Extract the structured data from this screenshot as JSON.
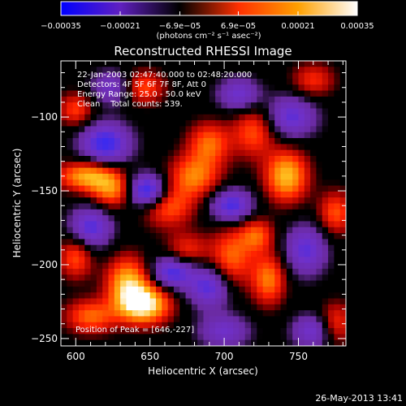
{
  "chart_data": {
    "type": "heatmap",
    "title": "Reconstructed RHESSI Image",
    "xlabel": "Heliocentric X (arcsec)",
    "ylabel": "Heliocentric Y (arcsec)",
    "xlim": [
      590,
      782
    ],
    "ylim": [
      -255,
      -62
    ],
    "x_ticks": [
      600,
      650,
      700,
      750
    ],
    "y_ticks": [
      -100,
      -150,
      -200,
      -250
    ],
    "x_tick_labels": [
      "600",
      "650",
      "700",
      "750"
    ],
    "y_tick_labels": [
      "−100",
      "−150",
      "−200",
      "−250"
    ],
    "colorbar": {
      "min": -0.00035,
      "max": 0.00035,
      "tick_values": [
        -0.00035,
        -0.00021,
        -6.9e-05,
        6.9e-05,
        0.00021,
        0.00035
      ],
      "tick_labels": [
        "−0.00035",
        "−0.00021",
        "−6.9e−05",
        "6.9e−05",
        "0.00021",
        "0.00035"
      ],
      "units_label": "(photons cm⁻² s⁻¹ asec⁻²)",
      "colors": [
        "#0000ff",
        "#6020c0",
        "#000000",
        "#ff3000",
        "#ffa000",
        "#ffffff"
      ]
    },
    "annotations": [
      "22-Jan-2003 02:47:40.000 to 02:48:20.000",
      "Detectors: 4F 5F 6F 7F 8F, Att 0",
      "Energy Range: 25.0 - 50.0 keV",
      "Clean    Total counts: 539."
    ],
    "peak_label": "Position of Peak = [646,-227]",
    "image_grid": {
      "nx": 24,
      "ny": 24,
      "blobs": [
        {
          "x": 646,
          "y": -227,
          "amp": 1.0,
          "sx": 12,
          "sy": 9
        },
        {
          "x": 635,
          "y": -212,
          "amp": 0.75,
          "sx": 10,
          "sy": 12
        },
        {
          "x": 610,
          "y": -235,
          "amp": 0.55,
          "sx": 12,
          "sy": 8
        },
        {
          "x": 600,
          "y": -195,
          "amp": 0.5,
          "sx": 8,
          "sy": 10
        },
        {
          "x": 608,
          "y": -140,
          "amp": 0.75,
          "sx": 14,
          "sy": 7
        },
        {
          "x": 625,
          "y": -150,
          "amp": 0.6,
          "sx": 10,
          "sy": 8
        },
        {
          "x": 662,
          "y": -160,
          "amp": 0.55,
          "sx": 12,
          "sy": 10
        },
        {
          "x": 680,
          "y": -140,
          "amp": 0.6,
          "sx": 12,
          "sy": 10
        },
        {
          "x": 690,
          "y": -118,
          "amp": 0.55,
          "sx": 10,
          "sy": 10
        },
        {
          "x": 720,
          "y": -110,
          "amp": 0.5,
          "sx": 10,
          "sy": 12
        },
        {
          "x": 742,
          "y": -140,
          "amp": 0.8,
          "sx": 10,
          "sy": 12
        },
        {
          "x": 705,
          "y": -195,
          "amp": 0.55,
          "sx": 10,
          "sy": 14
        },
        {
          "x": 730,
          "y": -210,
          "amp": 0.6,
          "sx": 8,
          "sy": 12
        },
        {
          "x": 722,
          "y": -180,
          "amp": 0.5,
          "sx": 8,
          "sy": 8
        },
        {
          "x": 600,
          "y": -95,
          "amp": 0.45,
          "sx": 8,
          "sy": 8
        },
        {
          "x": 645,
          "y": -80,
          "amp": 0.5,
          "sx": 10,
          "sy": 8
        },
        {
          "x": 675,
          "y": -190,
          "amp": 0.4,
          "sx": 10,
          "sy": 8
        },
        {
          "x": 775,
          "y": -240,
          "amp": 0.45,
          "sx": 8,
          "sy": 10
        },
        {
          "x": 775,
          "y": -165,
          "amp": 0.5,
          "sx": 8,
          "sy": 10
        },
        {
          "x": 760,
          "y": -75,
          "amp": 0.4,
          "sx": 10,
          "sy": 8
        },
        {
          "x": 620,
          "y": -118,
          "amp": -0.7,
          "sx": 12,
          "sy": 10
        },
        {
          "x": 648,
          "y": -150,
          "amp": -0.85,
          "sx": 10,
          "sy": 8
        },
        {
          "x": 610,
          "y": -175,
          "amp": -0.6,
          "sx": 10,
          "sy": 10
        },
        {
          "x": 705,
          "y": -160,
          "amp": -0.65,
          "sx": 10,
          "sy": 8
        },
        {
          "x": 745,
          "y": -100,
          "amp": -0.55,
          "sx": 12,
          "sy": 10
        },
        {
          "x": 665,
          "y": -205,
          "amp": -0.65,
          "sx": 10,
          "sy": 8
        },
        {
          "x": 690,
          "y": -215,
          "amp": -0.6,
          "sx": 10,
          "sy": 10
        },
        {
          "x": 755,
          "y": -190,
          "amp": -0.55,
          "sx": 10,
          "sy": 12
        },
        {
          "x": 760,
          "y": -245,
          "amp": -0.5,
          "sx": 10,
          "sy": 8
        },
        {
          "x": 700,
          "y": -245,
          "amp": -0.45,
          "sx": 12,
          "sy": 8
        },
        {
          "x": 625,
          "y": -80,
          "amp": -0.45,
          "sx": 10,
          "sy": 8
        },
        {
          "x": 710,
          "y": -85,
          "amp": -0.5,
          "sx": 10,
          "sy": 8
        }
      ]
    }
  },
  "footer_timestamp": "26-May-2013 13:41"
}
